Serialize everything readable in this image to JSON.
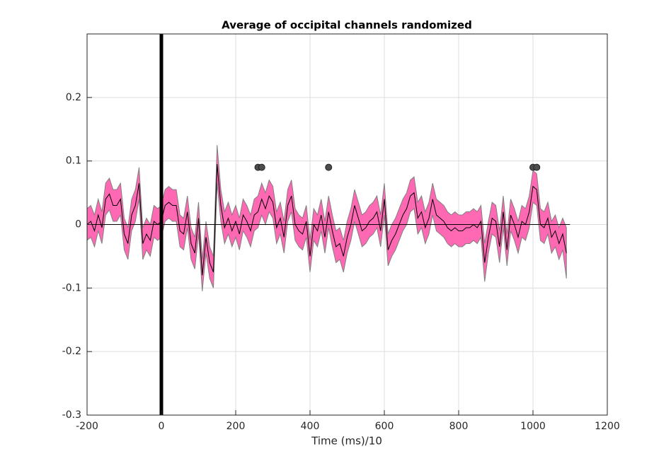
{
  "chart_data": {
    "type": "line",
    "title": "Average of occipital channels randomized",
    "xlabel": "Time (ms)/10",
    "x": [
      -200,
      -190,
      -180,
      -170,
      -160,
      -150,
      -140,
      -130,
      -120,
      -110,
      -100,
      -90,
      -80,
      -70,
      -60,
      -50,
      -40,
      -30,
      -20,
      -10,
      0,
      10,
      20,
      30,
      40,
      50,
      60,
      70,
      80,
      90,
      100,
      110,
      120,
      130,
      140,
      150,
      160,
      170,
      180,
      190,
      200,
      210,
      220,
      230,
      240,
      250,
      260,
      270,
      280,
      290,
      300,
      310,
      320,
      330,
      340,
      350,
      360,
      370,
      380,
      390,
      400,
      410,
      420,
      430,
      440,
      450,
      460,
      470,
      480,
      490,
      500,
      510,
      520,
      530,
      540,
      550,
      560,
      570,
      580,
      590,
      600,
      610,
      620,
      630,
      640,
      650,
      660,
      670,
      680,
      690,
      700,
      710,
      720,
      730,
      740,
      750,
      760,
      770,
      780,
      790,
      800,
      810,
      820,
      830,
      840,
      850,
      860,
      870,
      880,
      890,
      900,
      910,
      920,
      930,
      940,
      950,
      960,
      970,
      980,
      990,
      1000,
      1010,
      1020,
      1030,
      1040,
      1050,
      1060,
      1070,
      1080,
      1090
    ],
    "values": [
      0.0,
      0.005,
      -0.01,
      0.015,
      -0.005,
      0.04,
      0.048,
      0.03,
      0.03,
      0.04,
      -0.015,
      -0.03,
      0.015,
      0.03,
      0.065,
      -0.03,
      -0.015,
      -0.025,
      0.005,
      0.0,
      0.005,
      0.03,
      0.035,
      0.03,
      0.03,
      -0.01,
      -0.015,
      0.02,
      -0.03,
      -0.045,
      0.01,
      -0.08,
      -0.02,
      -0.06,
      -0.075,
      0.095,
      0.03,
      -0.005,
      0.01,
      -0.01,
      0.005,
      -0.015,
      0.015,
      0.005,
      -0.01,
      0.015,
      0.02,
      0.04,
      0.025,
      0.045,
      0.035,
      -0.005,
      0.01,
      -0.02,
      0.03,
      0.045,
      0.0,
      -0.01,
      -0.015,
      0.005,
      -0.05,
      0.0,
      -0.01,
      0.015,
      -0.02,
      0.02,
      -0.01,
      -0.035,
      -0.03,
      -0.05,
      -0.02,
      0.0,
      0.03,
      0.01,
      -0.01,
      -0.005,
      0.005,
      0.01,
      0.02,
      -0.01,
      0.04,
      -0.04,
      -0.025,
      -0.015,
      0.0,
      0.015,
      0.025,
      0.045,
      0.05,
      0.01,
      0.02,
      -0.005,
      0.01,
      0.04,
      0.015,
      0.01,
      0.005,
      -0.005,
      -0.01,
      -0.005,
      -0.01,
      -0.01,
      -0.005,
      -0.005,
      0.0,
      -0.005,
      0.005,
      -0.06,
      -0.02,
      0.01,
      0.005,
      -0.035,
      0.02,
      -0.04,
      0.015,
      0.0,
      -0.02,
      0.005,
      0.0,
      0.02,
      0.06,
      0.055,
      0.0,
      -0.005,
      0.01,
      -0.02,
      -0.01,
      -0.03,
      -0.015,
      -0.045
    ],
    "error": [
      0.025,
      0.025,
      0.025,
      0.025,
      0.025,
      0.025,
      0.025,
      0.025,
      0.025,
      0.025,
      0.025,
      0.025,
      0.025,
      0.025,
      0.025,
      0.025,
      0.025,
      0.025,
      0.025,
      0.025,
      0.025,
      0.025,
      0.025,
      0.025,
      0.025,
      0.025,
      0.025,
      0.025,
      0.025,
      0.025,
      0.025,
      0.025,
      0.025,
      0.025,
      0.025,
      0.03,
      0.025,
      0.025,
      0.025,
      0.025,
      0.025,
      0.025,
      0.025,
      0.025,
      0.025,
      0.025,
      0.025,
      0.025,
      0.025,
      0.025,
      0.025,
      0.025,
      0.025,
      0.025,
      0.025,
      0.025,
      0.025,
      0.025,
      0.025,
      0.025,
      0.025,
      0.025,
      0.025,
      0.025,
      0.025,
      0.025,
      0.025,
      0.025,
      0.025,
      0.025,
      0.025,
      0.025,
      0.025,
      0.025,
      0.025,
      0.025,
      0.025,
      0.025,
      0.025,
      0.025,
      0.025,
      0.025,
      0.025,
      0.025,
      0.025,
      0.025,
      0.025,
      0.025,
      0.025,
      0.025,
      0.025,
      0.025,
      0.025,
      0.025,
      0.025,
      0.025,
      0.025,
      0.025,
      0.025,
      0.025,
      0.025,
      0.025,
      0.025,
      0.025,
      0.025,
      0.025,
      0.025,
      0.03,
      0.025,
      0.025,
      0.025,
      0.025,
      0.025,
      0.025,
      0.025,
      0.025,
      0.025,
      0.025,
      0.025,
      0.025,
      0.025,
      0.025,
      0.025,
      0.025,
      0.025,
      0.025,
      0.025,
      0.025,
      0.025,
      0.04
    ],
    "color": "#000000",
    "band_color": "#ff69b4",
    "markers": {
      "x": [
        260,
        270,
        450,
        1000,
        1010
      ],
      "y": [
        0.09,
        0.09,
        0.09,
        0.09,
        0.09
      ],
      "color": "#4d4d4d"
    },
    "vline": 0,
    "hline": 0,
    "xlim": [
      -200,
      1200
    ],
    "ylim": [
      -0.3,
      0.3
    ],
    "xticks": [
      -200,
      0,
      200,
      400,
      600,
      800,
      1000,
      1200
    ],
    "yticks": [
      -0.3,
      -0.2,
      -0.1,
      0,
      0.1,
      0.2
    ],
    "grid": true
  }
}
